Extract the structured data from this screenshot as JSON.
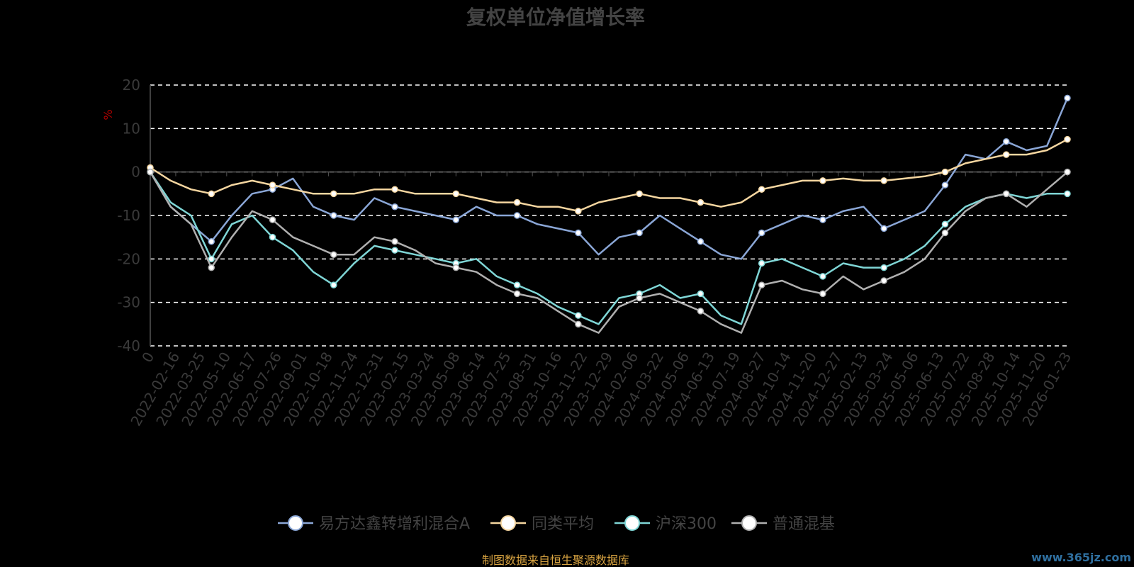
{
  "chart_data": {
    "type": "line",
    "title": "复权单位净值增长率",
    "ylabel": "%",
    "ylim": [
      -40,
      20
    ],
    "yticks": [
      20,
      10,
      0,
      -10,
      -20,
      -30,
      -40
    ],
    "x_tick_labels": [
      "0",
      "2022-02-16",
      "2022-03-25",
      "2022-05-10",
      "2022-06-17",
      "2022-07-26",
      "2022-09-01",
      "2022-10-18",
      "2022-11-24",
      "2022-12-31",
      "2023-02-15",
      "2023-03-24",
      "2023-05-08",
      "2023-06-14",
      "2023-07-25",
      "2023-08-31",
      "2023-10-16",
      "2023-11-22",
      "2023-12-29",
      "2024-02-06",
      "2024-03-22",
      "2024-05-06",
      "2024-06-13",
      "2024-07-19",
      "2024-08-27",
      "2024-10-14",
      "2024-11-20",
      "2024-12-27",
      "2025-02-13",
      "2025-03-24",
      "2025-05-06",
      "2025-06-13",
      "2025-07-22",
      "2025-08-28",
      "2025-10-14",
      "2025-11-20",
      "2026-01-23"
    ],
    "grid": "horizontal-dashed",
    "legend_position": "bottom",
    "series": [
      {
        "name": "易方达鑫转增利混合A",
        "color": "#8aa6d6",
        "values": [
          0,
          -8,
          -12,
          -16,
          -10,
          -5,
          -4,
          -1.5,
          -8,
          -10,
          -11,
          -6,
          -8,
          -9,
          -10,
          -11,
          -8,
          -10,
          -10,
          -12,
          -13,
          -14,
          -19,
          -15,
          -14,
          -10,
          -13,
          -16,
          -19,
          -20,
          -14,
          -12,
          -10,
          -11,
          -9,
          -8,
          -13,
          -11,
          -9,
          -3,
          4,
          3,
          7,
          5,
          6,
          17
        ]
      },
      {
        "name": "同类平均",
        "color": "#f5d6a0",
        "values": [
          1,
          -2,
          -4,
          -5,
          -3,
          -2,
          -3,
          -4,
          -5,
          -5,
          -5,
          -4,
          -4,
          -5,
          -5,
          -5,
          -6,
          -7,
          -7,
          -8,
          -8,
          -9,
          -7,
          -6,
          -5,
          -6,
          -6,
          -7,
          -8,
          -7,
          -4,
          -3,
          -2,
          -2,
          -1.5,
          -2,
          -2,
          -1.5,
          -1,
          0,
          2,
          3,
          4,
          4,
          5,
          7.5
        ]
      },
      {
        "name": "沪深300",
        "color": "#7fd6d6",
        "values": [
          0,
          -7,
          -10,
          -20,
          -12,
          -10,
          -15,
          -18,
          -23,
          -26,
          -21,
          -17,
          -18,
          -19,
          -20,
          -21,
          -20,
          -24,
          -26,
          -28,
          -31,
          -33,
          -35,
          -29,
          -28,
          -26,
          -29,
          -28,
          -33,
          -35,
          -21,
          -20,
          -22,
          -24,
          -21,
          -22,
          -22,
          -20,
          -17,
          -12,
          -8,
          -6,
          -5,
          -6,
          -5,
          -5
        ]
      },
      {
        "name": "普通混基",
        "color": "#b0b0b0",
        "values": [
          0,
          -8,
          -12,
          -22,
          -15,
          -9,
          -11,
          -15,
          -17,
          -19,
          -19,
          -15,
          -16,
          -18,
          -21,
          -22,
          -23,
          -26,
          -28,
          -29,
          -32,
          -35,
          -37,
          -31,
          -29,
          -28,
          -30,
          -32,
          -35,
          -37,
          -26,
          -25,
          -27,
          -28,
          -24,
          -27,
          -25,
          -23,
          -20,
          -14,
          -9,
          -6,
          -5,
          -8,
          -4,
          0
        ]
      }
    ]
  },
  "source_note": "制图数据来自恒生聚源数据库",
  "watermark": "www.365jz.com"
}
